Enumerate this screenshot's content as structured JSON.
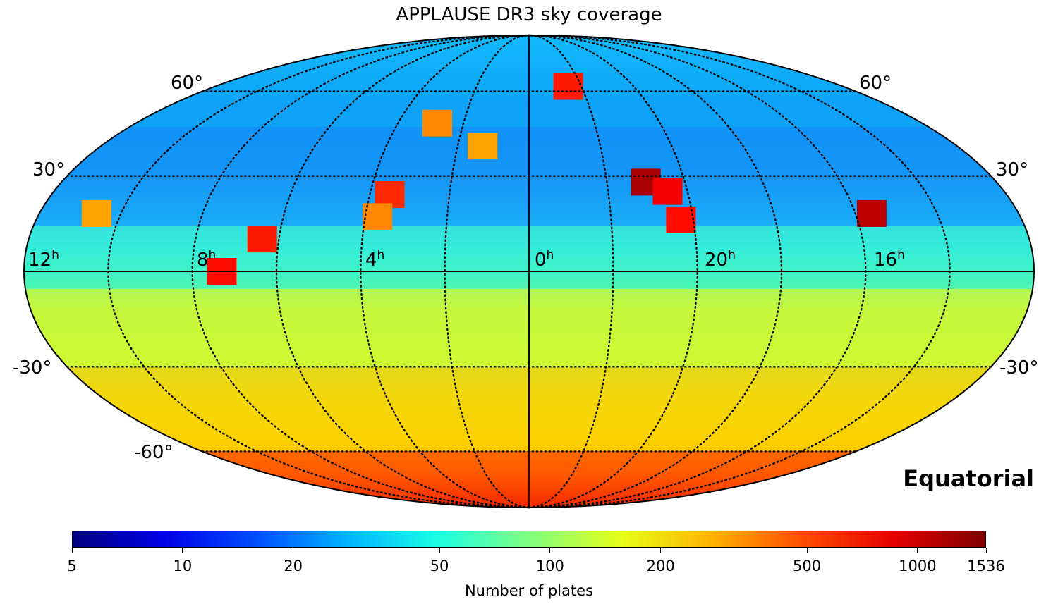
{
  "title": "APPLAUSE DR3 sky coverage",
  "projection_label": "Equatorial",
  "colormap": {
    "name": "jet",
    "scale": "log",
    "min": 5,
    "max": 1536,
    "label": "Number of plates",
    "ticks": [
      "5",
      "10",
      "20",
      "50",
      "100",
      "200",
      "500",
      "1000",
      "1536"
    ]
  },
  "meridian_labels": [
    {
      "text": "12",
      "unit": "h"
    },
    {
      "text": "8",
      "unit": "h"
    },
    {
      "text": "4",
      "unit": "h"
    },
    {
      "text": "0",
      "unit": "h"
    },
    {
      "text": "20",
      "unit": "h"
    },
    {
      "text": "16",
      "unit": "h"
    }
  ],
  "parallel_labels": [
    {
      "text": "60°"
    },
    {
      "text": "60°"
    },
    {
      "text": "30°"
    },
    {
      "text": "30°"
    },
    {
      "text": "-30°"
    },
    {
      "text": "-30°"
    },
    {
      "text": "-60°"
    }
  ],
  "regions": [
    {
      "name": "north-cap",
      "level": 30
    },
    {
      "name": "north-mid",
      "level": 25
    },
    {
      "name": "equator-band",
      "level": 55
    },
    {
      "name": "south-mid",
      "level": 150
    },
    {
      "name": "south-low",
      "level": 250
    },
    {
      "name": "south-pole",
      "level": 650
    }
  ],
  "hotspots": [
    {
      "ra_h": 7.3,
      "dec": 0,
      "level": 700
    },
    {
      "ra_h": 6.4,
      "dec": 10,
      "level": 650
    },
    {
      "ra_h": 3.5,
      "dec": 24,
      "level": 600
    },
    {
      "ra_h": 3.7,
      "dec": 17,
      "level": 350
    },
    {
      "ra_h": 22.5,
      "dec": 62,
      "level": 650
    },
    {
      "ra_h": 21.0,
      "dec": 28,
      "level": 1200
    },
    {
      "ra_h": 20.5,
      "dec": 25,
      "level": 800
    },
    {
      "ra_h": 20.3,
      "dec": 16,
      "level": 700
    },
    {
      "ra_h": 15.6,
      "dec": 18,
      "level": 1100
    },
    {
      "ra_h": 2.8,
      "dec": 48,
      "level": 350
    },
    {
      "ra_h": 1.3,
      "dec": 40,
      "level": 300
    },
    {
      "ra_h": 10.6,
      "dec": 18,
      "level": 300
    }
  ]
}
